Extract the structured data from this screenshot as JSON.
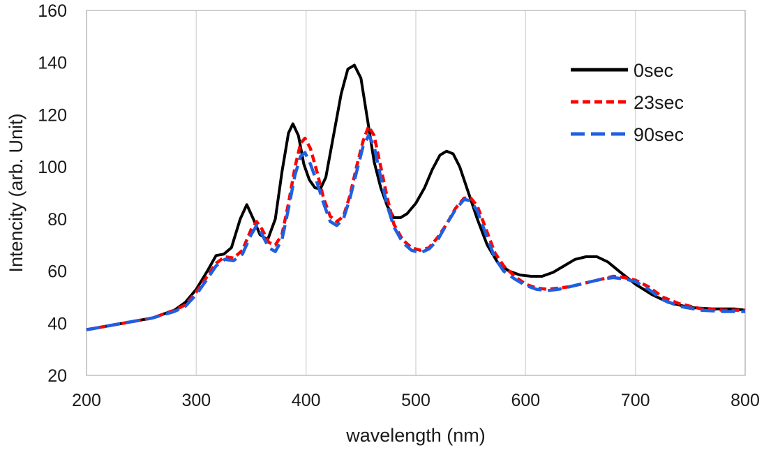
{
  "chart_data": {
    "type": "line",
    "xlabel": "wavelength  (nm)",
    "ylabel": "Intencity (arb. Unit)",
    "xlim": [
      200,
      800
    ],
    "ylim": [
      20,
      160
    ],
    "x_ticks": [
      200,
      300,
      400,
      500,
      600,
      700,
      800
    ],
    "y_ticks": [
      20,
      40,
      60,
      80,
      100,
      120,
      140,
      160
    ],
    "x_tick_labels": [
      "200",
      "300",
      "400",
      "500",
      "600",
      "700",
      "800"
    ],
    "y_tick_labels": [
      "20",
      "40",
      "60",
      "80",
      "100",
      "120",
      "140",
      "160"
    ],
    "grid": "vertical",
    "legend_position": "top-right",
    "series": [
      {
        "name": "0sec",
        "color": "#000000",
        "dash": "solid",
        "points": [
          [
            200,
            37.5
          ],
          [
            220,
            39
          ],
          [
            240,
            40.5
          ],
          [
            260,
            42
          ],
          [
            280,
            45
          ],
          [
            290,
            48
          ],
          [
            300,
            53
          ],
          [
            310,
            60
          ],
          [
            318,
            66
          ],
          [
            325,
            66.5
          ],
          [
            332,
            69
          ],
          [
            340,
            80
          ],
          [
            346,
            85.5
          ],
          [
            352,
            80
          ],
          [
            358,
            74
          ],
          [
            365,
            72
          ],
          [
            372,
            80
          ],
          [
            378,
            98
          ],
          [
            384,
            113
          ],
          [
            388,
            116.5
          ],
          [
            393,
            112
          ],
          [
            398,
            101
          ],
          [
            403,
            95
          ],
          [
            408,
            92
          ],
          [
            413,
            91.5
          ],
          [
            418,
            96
          ],
          [
            425,
            112
          ],
          [
            432,
            128
          ],
          [
            438,
            137.5
          ],
          [
            444,
            139
          ],
          [
            450,
            134
          ],
          [
            456,
            118
          ],
          [
            462,
            102
          ],
          [
            468,
            92
          ],
          [
            474,
            85
          ],
          [
            480,
            80.5
          ],
          [
            486,
            80.5
          ],
          [
            492,
            82
          ],
          [
            500,
            86
          ],
          [
            508,
            92
          ],
          [
            515,
            99
          ],
          [
            522,
            104.5
          ],
          [
            528,
            106
          ],
          [
            534,
            105
          ],
          [
            540,
            100
          ],
          [
            548,
            90
          ],
          [
            556,
            80
          ],
          [
            565,
            70
          ],
          [
            575,
            63
          ],
          [
            585,
            60
          ],
          [
            595,
            58.5
          ],
          [
            605,
            58
          ],
          [
            615,
            58
          ],
          [
            625,
            59.5
          ],
          [
            635,
            62
          ],
          [
            645,
            64.5
          ],
          [
            655,
            65.5
          ],
          [
            665,
            65.5
          ],
          [
            675,
            63.5
          ],
          [
            685,
            60
          ],
          [
            700,
            55
          ],
          [
            715,
            51
          ],
          [
            730,
            48
          ],
          [
            750,
            46
          ],
          [
            770,
            45.5
          ],
          [
            790,
            45.5
          ],
          [
            800,
            45
          ]
        ]
      },
      {
        "name": "23sec",
        "color": "#ff0000",
        "dash": "short",
        "points": [
          [
            200,
            37.5
          ],
          [
            220,
            39
          ],
          [
            240,
            40.5
          ],
          [
            260,
            42
          ],
          [
            280,
            45
          ],
          [
            290,
            47
          ],
          [
            300,
            52
          ],
          [
            310,
            58
          ],
          [
            318,
            63
          ],
          [
            326,
            65.5
          ],
          [
            334,
            65
          ],
          [
            342,
            68
          ],
          [
            350,
            76
          ],
          [
            355,
            79
          ],
          [
            360,
            76
          ],
          [
            366,
            71
          ],
          [
            372,
            70
          ],
          [
            378,
            74
          ],
          [
            384,
            86
          ],
          [
            390,
            100
          ],
          [
            395,
            109
          ],
          [
            399,
            111
          ],
          [
            404,
            107
          ],
          [
            410,
            98
          ],
          [
            416,
            88
          ],
          [
            422,
            81
          ],
          [
            428,
            79
          ],
          [
            434,
            81
          ],
          [
            440,
            89
          ],
          [
            446,
            100
          ],
          [
            452,
            110
          ],
          [
            457,
            115.5
          ],
          [
            462,
            112
          ],
          [
            468,
            100
          ],
          [
            474,
            88
          ],
          [
            480,
            78
          ],
          [
            488,
            72
          ],
          [
            496,
            69
          ],
          [
            504,
            68
          ],
          [
            512,
            69
          ],
          [
            520,
            73
          ],
          [
            528,
            78
          ],
          [
            536,
            84
          ],
          [
            544,
            88
          ],
          [
            550,
            88
          ],
          [
            556,
            85
          ],
          [
            564,
            76
          ],
          [
            572,
            67
          ],
          [
            580,
            62
          ],
          [
            590,
            58
          ],
          [
            600,
            55
          ],
          [
            610,
            53.5
          ],
          [
            620,
            53
          ],
          [
            630,
            53.5
          ],
          [
            640,
            54
          ],
          [
            650,
            55
          ],
          [
            660,
            56
          ],
          [
            670,
            57
          ],
          [
            680,
            58
          ],
          [
            690,
            57.5
          ],
          [
            700,
            56.5
          ],
          [
            712,
            54
          ],
          [
            725,
            50
          ],
          [
            740,
            47.5
          ],
          [
            760,
            45.5
          ],
          [
            780,
            45
          ],
          [
            800,
            45
          ]
        ]
      },
      {
        "name": "90sec",
        "color": "#1f5fe0",
        "dash": "long",
        "points": [
          [
            200,
            37.5
          ],
          [
            220,
            39
          ],
          [
            240,
            40.5
          ],
          [
            260,
            42
          ],
          [
            280,
            44.5
          ],
          [
            290,
            46.5
          ],
          [
            300,
            51
          ],
          [
            310,
            57
          ],
          [
            318,
            62
          ],
          [
            326,
            64.5
          ],
          [
            334,
            64
          ],
          [
            342,
            66.5
          ],
          [
            350,
            74
          ],
          [
            355,
            77.5
          ],
          [
            360,
            74
          ],
          [
            366,
            69
          ],
          [
            372,
            67.5
          ],
          [
            378,
            72
          ],
          [
            384,
            84
          ],
          [
            390,
            97
          ],
          [
            395,
            104
          ],
          [
            399,
            105.5
          ],
          [
            404,
            101
          ],
          [
            410,
            94
          ],
          [
            416,
            86
          ],
          [
            422,
            79
          ],
          [
            428,
            77.5
          ],
          [
            434,
            80
          ],
          [
            440,
            88
          ],
          [
            446,
            98
          ],
          [
            452,
            108
          ],
          [
            457,
            112
          ],
          [
            462,
            108
          ],
          [
            468,
            96
          ],
          [
            474,
            85
          ],
          [
            480,
            77
          ],
          [
            488,
            71
          ],
          [
            496,
            68
          ],
          [
            504,
            67
          ],
          [
            512,
            68.5
          ],
          [
            520,
            72
          ],
          [
            528,
            78
          ],
          [
            536,
            83.5
          ],
          [
            544,
            87.5
          ],
          [
            550,
            87
          ],
          [
            556,
            83
          ],
          [
            564,
            74
          ],
          [
            572,
            65
          ],
          [
            580,
            60
          ],
          [
            590,
            57
          ],
          [
            600,
            54.5
          ],
          [
            610,
            53
          ],
          [
            620,
            52.5
          ],
          [
            630,
            53
          ],
          [
            640,
            54
          ],
          [
            650,
            55
          ],
          [
            660,
            56
          ],
          [
            670,
            57
          ],
          [
            680,
            57.5
          ],
          [
            690,
            57
          ],
          [
            700,
            56
          ],
          [
            712,
            53
          ],
          [
            725,
            49
          ],
          [
            740,
            46.5
          ],
          [
            760,
            45
          ],
          [
            780,
            44.5
          ],
          [
            800,
            44.5
          ]
        ]
      }
    ]
  }
}
